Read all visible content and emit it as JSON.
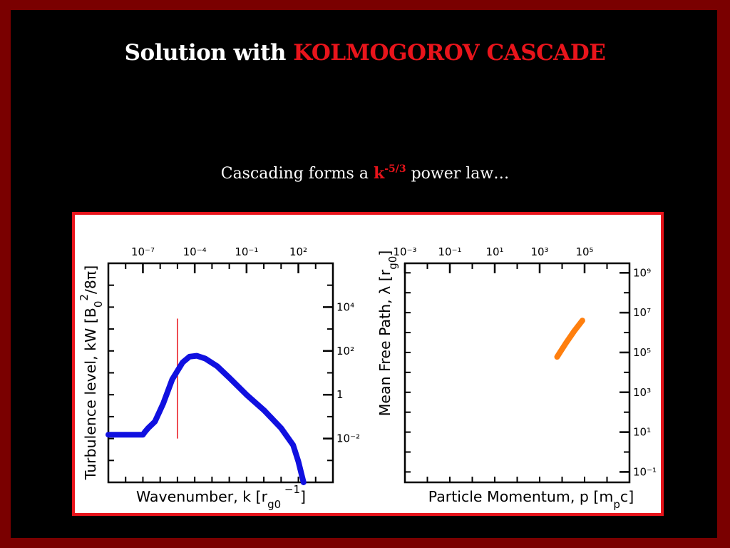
{
  "slide": {
    "title_plain": "Solution with ",
    "title_highlight": "KOLMOGOROV CASCADE",
    "subtitle_before": "Cascading forms a ",
    "subtitle_k": "k",
    "subtitle_exp": "-5/3",
    "subtitle_after": " power law…",
    "colors": {
      "background": "#000000",
      "frame": "#7a0000",
      "highlight": "#e8141b",
      "panel_border": "#e8141b"
    }
  },
  "chart_data": [
    {
      "type": "line",
      "title": "",
      "xlabel": "Wavenumber, k [r_g0^-1]",
      "ylabel": "Turbulence level, kW [B_0^2/8π]",
      "x_scale": "log",
      "y_scale": "log",
      "xlim": [
        1e-09,
        10000.0
      ],
      "ylim": [
        0.0001,
        1000000.0
      ],
      "x_ticks": [
        {
          "value": 1e-07,
          "label": "10⁻⁷"
        },
        {
          "value": 0.0001,
          "label": "10⁻⁴"
        },
        {
          "value": 0.1,
          "label": "10⁻¹"
        },
        {
          "value": 100,
          "label": "10²"
        }
      ],
      "y_ticks": [
        {
          "value": 0.01,
          "label": "10⁻²"
        },
        {
          "value": 1,
          "label": "1"
        },
        {
          "value": 100,
          "label": "10²"
        },
        {
          "value": 10000.0,
          "label": "10⁴"
        }
      ],
      "x_tick_position": "top",
      "y_tick_position": "right",
      "grid": false,
      "series": [
        {
          "color": "#1010e0",
          "x": [
            1e-09,
            1e-08,
            6e-08,
            1e-07,
            1.3e-07,
            2e-07,
            5e-07,
            1.5e-06,
            5e-06,
            2e-05,
            5e-05,
            0.00013,
            0.0004,
            0.002,
            0.01,
            0.1,
            1,
            10,
            50,
            100,
            200
          ],
          "y": [
            0.015,
            0.015,
            0.015,
            0.015,
            0.02,
            0.03,
            0.06,
            0.4,
            5,
            30,
            55,
            60,
            45,
            20,
            6,
            1,
            0.2,
            0.03,
            0.005,
            0.0009,
            0.0001
          ]
        }
      ],
      "annotations": [
        {
          "type": "vertical-line",
          "x": 1e-05,
          "y_from": 0.01,
          "y_to": 3000,
          "color": "#e8141b"
        }
      ]
    },
    {
      "type": "line",
      "title": "",
      "xlabel": "Particle Momentum, p [m_pc]",
      "ylabel": "Mean Free Path, λ [r_g0]",
      "x_scale": "log",
      "y_scale": "log",
      "xlim": [
        0.001,
        10000000.0
      ],
      "ylim": [
        0.03,
        3000000000.0
      ],
      "x_ticks": [
        {
          "value": 0.001,
          "label": "10⁻³"
        },
        {
          "value": 0.1,
          "label": "10⁻¹"
        },
        {
          "value": 10,
          "label": "10¹"
        },
        {
          "value": 1000,
          "label": "10³"
        },
        {
          "value": 100000,
          "label": "10⁵"
        }
      ],
      "y_ticks": [
        {
          "value": 0.1,
          "label": "10⁻¹"
        },
        {
          "value": 10,
          "label": "10¹"
        },
        {
          "value": 1000,
          "label": "10³"
        },
        {
          "value": 100000,
          "label": "10⁵"
        },
        {
          "value": 10000000.0,
          "label": "10⁷"
        },
        {
          "value": 1000000000.0,
          "label": "10⁹"
        }
      ],
      "x_tick_position": "top",
      "y_tick_position": "right",
      "grid": false,
      "series": [
        {
          "color": "#ff7f0e",
          "x": [
            6000,
            8000,
            15000,
            35000,
            80000
          ],
          "y": [
            60000,
            100000,
            300000,
            1200000,
            4000000
          ]
        }
      ]
    }
  ]
}
